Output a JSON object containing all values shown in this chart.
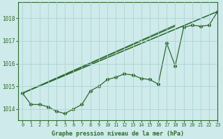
{
  "title": "Graphe pression niveau de la mer (hPa)",
  "background_color": "#ceeaea",
  "grid_color": "#aed4d4",
  "line_color": "#2d6a2d",
  "xlim": [
    -0.5,
    23
  ],
  "ylim": [
    1013.5,
    1018.7
  ],
  "yticks": [
    1014,
    1015,
    1016,
    1017,
    1018
  ],
  "xticks": [
    0,
    1,
    2,
    3,
    4,
    5,
    6,
    7,
    8,
    9,
    10,
    11,
    12,
    13,
    14,
    15,
    16,
    17,
    18,
    19,
    20,
    21,
    22,
    23
  ],
  "main_series": [
    1014.7,
    1014.2,
    1014.2,
    1014.1,
    1013.9,
    1013.8,
    1014.0,
    1014.2,
    1014.8,
    1015.0,
    1015.3,
    1015.4,
    1015.55,
    1015.5,
    1015.35,
    1015.3,
    1015.1,
    1016.9,
    1015.9,
    1017.6,
    1017.7,
    1017.65,
    1017.7,
    1018.3
  ],
  "straight_lines": [
    {
      "x0": 0,
      "y0": 1014.7,
      "x1": 23,
      "y1": 1018.3
    },
    {
      "x0": 0,
      "y0": 1014.7,
      "x1": 23,
      "y1": 1018.3
    },
    {
      "x0": 0,
      "y0": 1014.7,
      "x1": 18,
      "y1": 1017.7
    },
    {
      "x0": 0,
      "y0": 1014.7,
      "x1": 18,
      "y1": 1017.65
    }
  ]
}
